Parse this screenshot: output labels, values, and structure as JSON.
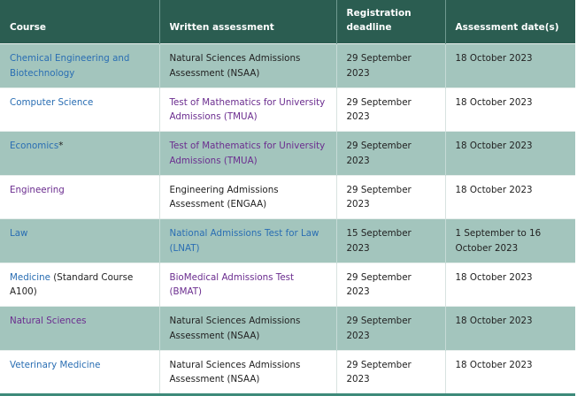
{
  "headers": [
    "Course",
    "Written assessment",
    "Registration deadline",
    "Assessment date(s)"
  ],
  "rows": [
    {
      "course": "Chemical Engineering and Biotechnology",
      "course_suffix": "",
      "course_style": "link",
      "assessment": "Natural Sciences Admissions Assessment (NSAA)",
      "assessment_style": "plain",
      "deadline": "29 September 2023",
      "date": "18 October 2023"
    },
    {
      "course": "Computer Science",
      "course_suffix": "",
      "course_style": "link",
      "assessment": "Test of Mathematics for University Admissions (TMUA)",
      "assessment_style": "visited",
      "deadline": "29 September 2023",
      "date": "18 October 2023"
    },
    {
      "course": "Economics",
      "course_suffix": "*",
      "course_style": "link",
      "assessment": "Test of Mathematics for University Admissions (TMUA)",
      "assessment_style": "visited",
      "deadline": "29 September 2023",
      "date": "18 October 2023"
    },
    {
      "course": "Engineering",
      "course_suffix": "",
      "course_style": "visited",
      "assessment": "Engineering Admissions Assessment (ENGAA)",
      "assessment_style": "plain",
      "deadline": "29 September 2023",
      "date": "18 October 2023"
    },
    {
      "course": "Law",
      "course_suffix": "",
      "course_style": "link",
      "assessment": "National Admissions Test for Law (LNAT)",
      "assessment_style": "link",
      "deadline": "15 September 2023",
      "date": "1 September to 16 October 2023"
    },
    {
      "course": "Medicine",
      "course_suffix": " (Standard Course A100)",
      "course_style": "link",
      "assessment": "BioMedical Admissions Test (BMAT)",
      "assessment_style": "visited",
      "deadline": "29 September 2023",
      "date": "18 October 2023"
    },
    {
      "course": "Natural Sciences",
      "course_suffix": "",
      "course_style": "visited",
      "assessment": "Natural Sciences Admissions Assessment (NSAA)",
      "assessment_style": "plain",
      "deadline": "29 September 2023",
      "date": "18 October 2023"
    },
    {
      "course": "Veterinary Medicine",
      "course_suffix": "",
      "course_style": "link",
      "assessment": "Natural Sciences Admissions Assessment (NSAA)",
      "assessment_style": "plain",
      "deadline": "29 September 2023",
      "date": "18 October 2023"
    }
  ],
  "colors": {
    "header": "#2b5d51",
    "shaded_row": "#a3c5bd",
    "link": "#2a6eb3",
    "visited_link": "#6b2d8f"
  }
}
